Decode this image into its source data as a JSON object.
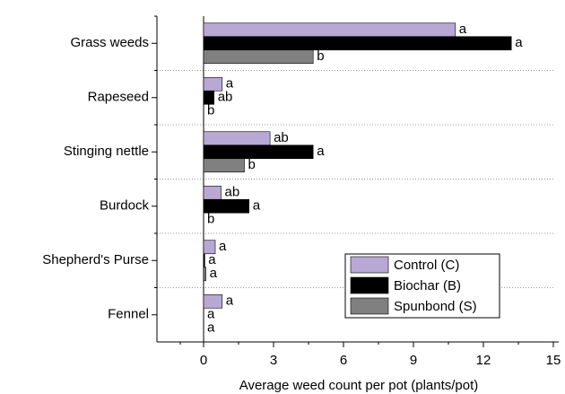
{
  "chart_data": {
    "type": "barh",
    "categories": [
      "Grass weeds",
      "Rapeseed",
      "Stinging nettle",
      "Burdock",
      "Shepherd's Purse",
      "Fennel"
    ],
    "series": [
      {
        "name": "Control (C)",
        "color": "#b8a8d4",
        "values": [
          10.8,
          0.8,
          2.85,
          0.75,
          0.5,
          0.8
        ],
        "letters": [
          "a",
          "a",
          "ab",
          "ab",
          "a",
          "a"
        ]
      },
      {
        "name": "Biochar (B)",
        "color": "#000000",
        "values": [
          13.2,
          0.45,
          4.7,
          1.95,
          0.05,
          0
        ],
        "letters": [
          "a",
          "ab",
          "a",
          "a",
          "a",
          "a"
        ]
      },
      {
        "name": "Spunbond (S)",
        "color": "#808080",
        "values": [
          4.7,
          0,
          1.75,
          0,
          0.1,
          0
        ],
        "letters": [
          "b",
          "b",
          "b",
          "b",
          "a",
          "a"
        ]
      }
    ],
    "xlabel": "Average weed count per pot (plants/pot)",
    "xlim": [
      -2,
      15
    ],
    "xticks": [
      0,
      3,
      6,
      9,
      12,
      15
    ],
    "grid": true,
    "legend": "lower right"
  }
}
